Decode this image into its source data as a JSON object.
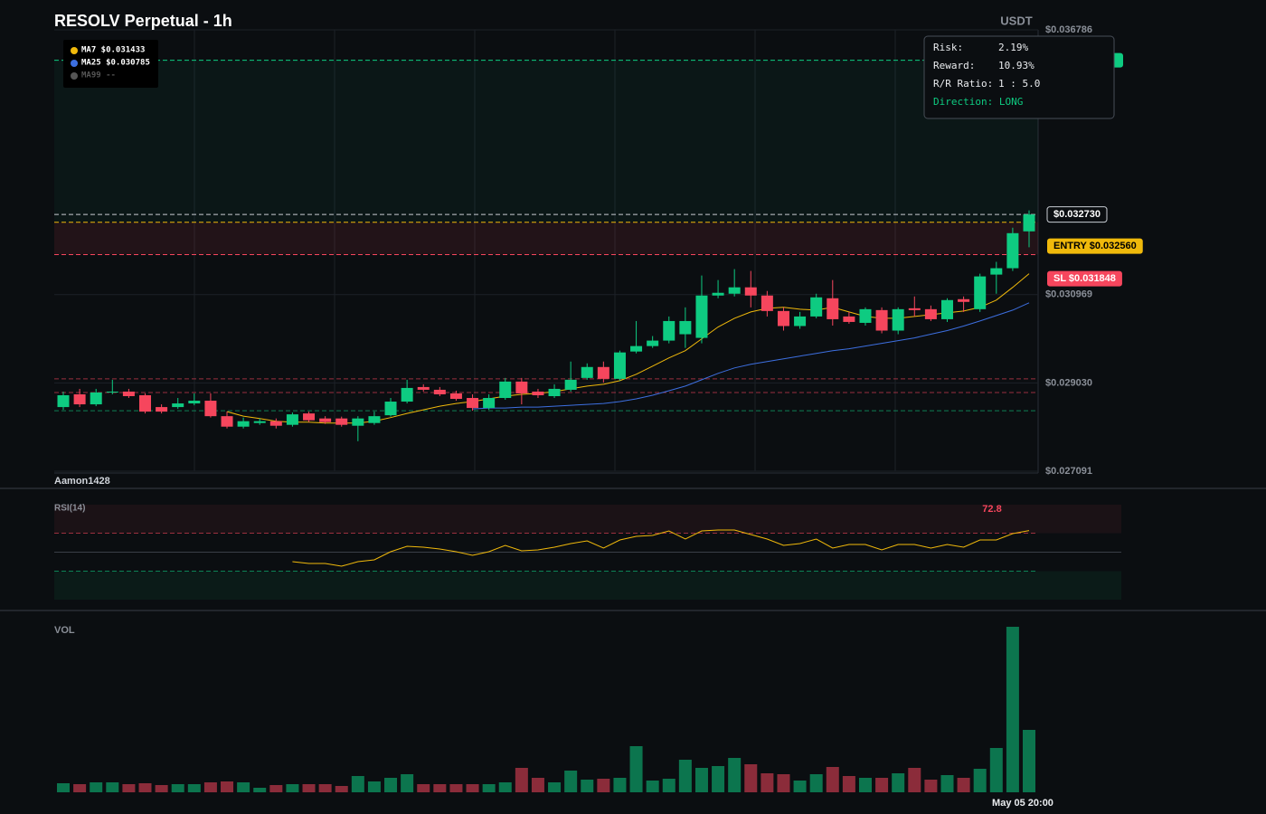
{
  "chart_data": [
    {
      "type": "candlestick",
      "title": "RESOLV Perpetual - 1h",
      "currency": "USDT",
      "author": "Aamon1428",
      "open": [
        0.0285,
        0.02878,
        0.02856,
        0.02882,
        0.02884,
        0.02876,
        0.0285,
        0.0285,
        0.02858,
        0.02864,
        0.0283,
        0.02807,
        0.02815,
        0.02819,
        0.02811,
        0.02836,
        0.02825,
        0.02825,
        0.02809,
        0.02815,
        0.02832,
        0.02862,
        0.02894,
        0.02888,
        0.0288,
        0.0287,
        0.02848,
        0.0287,
        0.02906,
        0.02884,
        0.02874,
        0.02888,
        0.02914,
        0.02938,
        0.02912,
        0.02972,
        0.02984,
        0.02996,
        0.0301,
        0.03002,
        0.03095,
        0.03099,
        0.03113,
        0.03095,
        0.03061,
        0.03028,
        0.03049,
        0.03089,
        0.03049,
        0.03035,
        0.03063,
        0.03018,
        0.03067,
        0.03065,
        0.03043,
        0.03087,
        0.03065,
        0.03141,
        0.03155,
        0.03236
      ],
      "high": [
        0.02884,
        0.0289,
        0.0289,
        0.0291,
        0.0289,
        0.0288,
        0.02856,
        0.0287,
        0.0288,
        0.0288,
        0.0284,
        0.02827,
        0.02825,
        0.02825,
        0.02838,
        0.0284,
        0.0283,
        0.02829,
        0.0283,
        0.0284,
        0.0287,
        0.0291,
        0.029,
        0.02894,
        0.02886,
        0.02878,
        0.02878,
        0.02914,
        0.02914,
        0.0289,
        0.029,
        0.0295,
        0.02946,
        0.0295,
        0.02974,
        0.03039,
        0.03006,
        0.03049,
        0.03069,
        0.03139,
        0.03129,
        0.03153,
        0.03149,
        0.03105,
        0.03069,
        0.03059,
        0.03099,
        0.03129,
        0.03059,
        0.03069,
        0.03069,
        0.03069,
        0.03093,
        0.03073,
        0.03089,
        0.03093,
        0.03143,
        0.03169,
        0.03244,
        0.03282
      ],
      "low": [
        0.02844,
        0.0285,
        0.02852,
        0.02878,
        0.0287,
        0.02836,
        0.02836,
        0.02846,
        0.02854,
        0.02827,
        0.02803,
        0.02803,
        0.02811,
        0.02803,
        0.02807,
        0.02817,
        0.02813,
        0.02807,
        0.02775,
        0.02811,
        0.02829,
        0.02858,
        0.02884,
        0.02874,
        0.02864,
        0.02842,
        0.02844,
        0.02866,
        0.02856,
        0.0287,
        0.0287,
        0.02884,
        0.0291,
        0.02904,
        0.02908,
        0.02968,
        0.0298,
        0.0299,
        0.0298,
        0.0299,
        0.03089,
        0.03093,
        0.03069,
        0.03049,
        0.03018,
        0.03022,
        0.03045,
        0.03029,
        0.03033,
        0.03029,
        0.03012,
        0.0301,
        0.03049,
        0.03039,
        0.03037,
        0.03059,
        0.03059,
        0.03099,
        0.03149,
        0.03201
      ],
      "close": [
        0.02876,
        0.02856,
        0.02882,
        0.02884,
        0.02874,
        0.0284,
        0.0284,
        0.02858,
        0.02864,
        0.0283,
        0.02807,
        0.02819,
        0.02819,
        0.02809,
        0.02834,
        0.02821,
        0.02817,
        0.02811,
        0.02825,
        0.0283,
        0.02862,
        0.02892,
        0.02888,
        0.02878,
        0.02868,
        0.02848,
        0.0287,
        0.02906,
        0.0288,
        0.02876,
        0.0289,
        0.0291,
        0.02938,
        0.02912,
        0.0297,
        0.02984,
        0.02996,
        0.03039,
        0.03039,
        0.03095,
        0.03101,
        0.03113,
        0.03095,
        0.03061,
        0.03028,
        0.03049,
        0.03091,
        0.03043,
        0.03037,
        0.03065,
        0.03018,
        0.03065,
        0.03063,
        0.03043,
        0.03085,
        0.03081,
        0.03137,
        0.03155,
        0.03232,
        0.03273
      ],
      "up_color": "#0ecb81",
      "down_color": "#f6465d",
      "ylim": [
        0.027091,
        0.036786
      ],
      "yticks": [
        {
          "value": 0.027091,
          "label": "$0.027091"
        },
        {
          "value": 0.02903,
          "label": "$0.029030"
        },
        {
          "value": 0.030969,
          "label": "$0.030969"
        },
        {
          "value": 0.036786,
          "label": "$0.036786"
        }
      ],
      "grid": true,
      "series": [
        {
          "name": "MA7 $0.031433",
          "color": "#f0b90b",
          "values": [
            null,
            null,
            null,
            null,
            null,
            null,
            null,
            null,
            null,
            null,
            0.0284,
            0.0283,
            0.02825,
            0.02819,
            0.02817,
            0.02817,
            0.02815,
            0.02815,
            0.02815,
            0.02819,
            0.02827,
            0.02836,
            0.02844,
            0.02852,
            0.02858,
            0.02862,
            0.02868,
            0.02874,
            0.02878,
            0.0288,
            0.02884,
            0.0289,
            0.02896,
            0.029,
            0.02908,
            0.02922,
            0.0294,
            0.02958,
            0.02974,
            0.03,
            0.03026,
            0.03045,
            0.03059,
            0.03067,
            0.03069,
            0.03065,
            0.03063,
            0.03069,
            0.03059,
            0.03049,
            0.03045,
            0.03045,
            0.03049,
            0.03053,
            0.03057,
            0.03061,
            0.03069,
            0.03085,
            0.03113,
            0.03143
          ]
        },
        {
          "name": "MA25 $0.030785",
          "color": "#3d6fe0",
          "values": [
            null,
            null,
            null,
            null,
            null,
            null,
            null,
            null,
            null,
            null,
            null,
            null,
            null,
            null,
            null,
            null,
            null,
            null,
            null,
            null,
            null,
            null,
            null,
            null,
            null,
            0.02846,
            0.02848,
            0.02848,
            0.0285,
            0.0285,
            0.02852,
            0.02854,
            0.02856,
            0.02858,
            0.02862,
            0.02868,
            0.02876,
            0.02886,
            0.02896,
            0.0291,
            0.02924,
            0.02936,
            0.02944,
            0.0295,
            0.02956,
            0.02962,
            0.02968,
            0.02974,
            0.02978,
            0.02984,
            0.0299,
            0.02996,
            0.03002,
            0.0301,
            0.03018,
            0.03028,
            0.03039,
            0.03051,
            0.03063,
            0.03079
          ]
        },
        {
          "name": "MA99 --",
          "color": "#555555",
          "values": [
            null,
            null,
            null,
            null,
            null,
            null,
            null,
            null,
            null,
            null,
            null,
            null,
            null,
            null,
            null,
            null,
            null,
            null,
            null,
            null,
            null,
            null,
            null,
            null,
            null,
            null,
            null,
            null,
            null,
            null,
            null,
            null,
            null,
            null,
            null,
            null,
            null,
            null,
            null,
            null,
            null,
            null,
            null,
            null,
            null,
            null,
            null,
            null,
            null,
            null,
            null,
            null,
            null,
            null,
            null,
            null,
            null,
            null,
            null,
            null
          ]
        }
      ],
      "last_price": {
        "value": 0.03273,
        "label": "$0.032730"
      },
      "levels": [
        {
          "name": "ENTRY $0.032560",
          "value": 0.03256,
          "color": "#f0b90b"
        },
        {
          "name": "SL $0.031848",
          "value": 0.031848,
          "color": "#f6465d"
        },
        {
          "value": 0.036119,
          "color": "#0ecb81"
        }
      ],
      "support_resistance": [
        {
          "value": 0.02912,
          "color": "#f6465d"
        },
        {
          "value": 0.02882,
          "color": "#f6465d"
        },
        {
          "value": 0.02842,
          "color": "#0ecb81"
        }
      ],
      "risk_box": {
        "rows": [
          [
            "Risk:",
            "2.19%"
          ],
          [
            "Reward:",
            "10.93%"
          ],
          [
            "R/R Ratio:",
            "1 : 5.0"
          ]
        ],
        "direction": "Direction: LONG"
      }
    },
    {
      "type": "line",
      "title": "RSI(14)",
      "color": "#f0b90b",
      "label_color": "#f6465d",
      "values": [
        null,
        null,
        null,
        null,
        null,
        null,
        null,
        null,
        null,
        null,
        null,
        null,
        null,
        null,
        40,
        38.1,
        38.1,
        35.2,
        40,
        41.9,
        50.5,
        56.2,
        55.2,
        53.3,
        50.5,
        46.7,
        50.5,
        57.1,
        51.4,
        52.4,
        55.2,
        59,
        61.9,
        54.3,
        62.9,
        66.7,
        67.6,
        72.4,
        63.8,
        72.4,
        73.3,
        73.3,
        68.6,
        63.8,
        57.1,
        59,
        63.8,
        54.3,
        58.1,
        58.1,
        52.4,
        58.1,
        58.1,
        54.3,
        58.1,
        55.2,
        62.9,
        62.9,
        69.5,
        72.8
      ],
      "ylim": [
        0,
        100
      ],
      "overbought": 70,
      "midline": 50,
      "oversold": 30
    },
    {
      "type": "bar",
      "title": "VOL",
      "categories": [
        null,
        null,
        null,
        null,
        null,
        null,
        null,
        null,
        null,
        null,
        null,
        null,
        null,
        null,
        null,
        null,
        null,
        null,
        null,
        null,
        null,
        null,
        null,
        null,
        null,
        null,
        null,
        null,
        null,
        null,
        null,
        null,
        null,
        null,
        null,
        null,
        null,
        null,
        null,
        null,
        null,
        null,
        null,
        null,
        null,
        null,
        null,
        null,
        null,
        null,
        null,
        null,
        null,
        null,
        null,
        null,
        null,
        null,
        null,
        "May 05 20:00"
      ],
      "values": [
        10,
        9,
        11,
        11,
        9,
        10,
        8,
        9,
        9,
        11,
        12,
        11,
        5,
        8,
        9,
        9,
        9,
        7,
        18,
        12,
        16,
        20,
        9,
        9,
        9,
        9,
        9,
        11,
        27,
        16,
        11,
        24,
        14,
        15,
        16,
        51,
        13,
        15,
        36,
        27,
        29,
        38,
        31,
        21,
        20,
        13,
        20,
        28,
        18,
        16,
        16,
        21,
        27,
        14,
        19,
        16,
        26,
        49,
        183,
        69
      ],
      "ylim": [
        0,
        190
      ]
    }
  ]
}
